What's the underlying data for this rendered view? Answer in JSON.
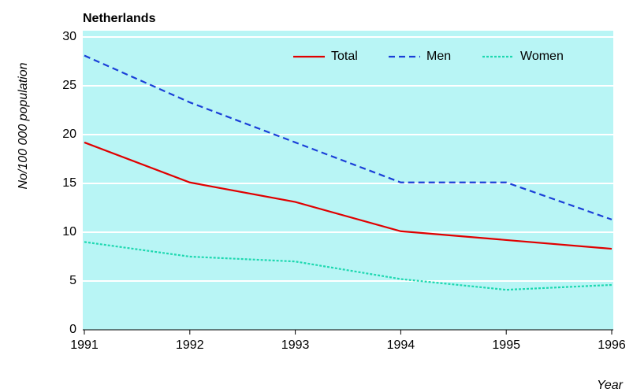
{
  "chart_data": {
    "type": "line",
    "title": "Netherlands",
    "y_label": "No/100 000 population",
    "x_label": "Year",
    "x": [
      1991,
      1992,
      1993,
      1994,
      1995,
      1996
    ],
    "series": [
      {
        "name": "Total",
        "color": "#e00000",
        "dash": "solid",
        "values": [
          19.2,
          15.1,
          13.1,
          10.1,
          9.2,
          8.3
        ]
      },
      {
        "name": "Men",
        "color": "#1a3fd8",
        "dash": "dashed",
        "values": [
          28.1,
          23.3,
          19.2,
          15.1,
          15.1,
          11.3
        ]
      },
      {
        "name": "Women",
        "color": "#1ed8b0",
        "dash": "dotted",
        "values": [
          9.0,
          7.5,
          7.0,
          5.2,
          4.1,
          4.6
        ]
      }
    ],
    "xlim": [
      1991,
      1996
    ],
    "xticks": [
      1991,
      1992,
      1993,
      1994,
      1995,
      1996
    ],
    "ylim": [
      0,
      30
    ],
    "yticks": [
      0,
      5,
      10,
      15,
      20,
      25,
      30
    ],
    "grid": true,
    "legend": "top-right",
    "background": "#b8f5f5"
  }
}
